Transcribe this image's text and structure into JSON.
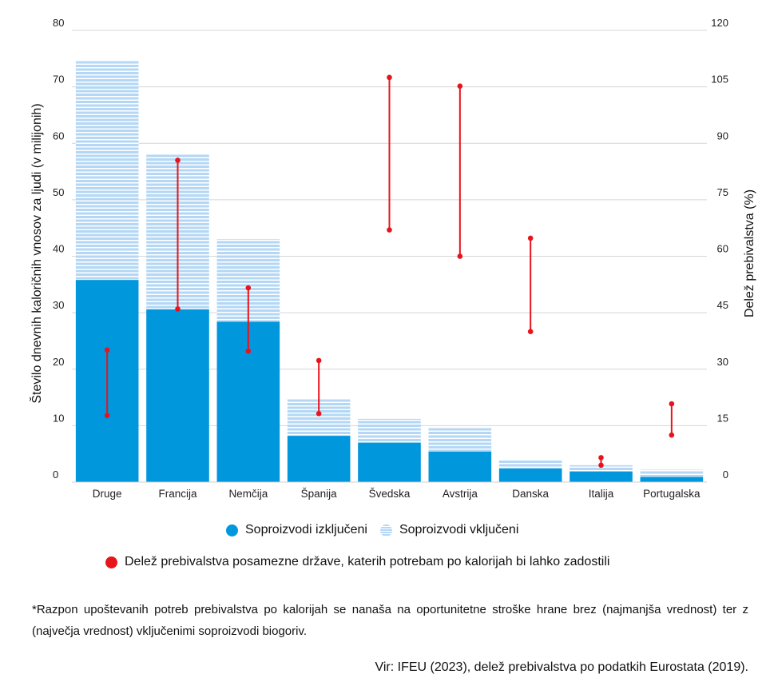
{
  "chart_data": {
    "type": "bar",
    "stacked": true,
    "categories": [
      "Druge",
      "Francija",
      "Nemčija",
      "Španija",
      "Švedska",
      "Avstrija",
      "Danska",
      "Italija",
      "Portugalska"
    ],
    "series": [
      {
        "name": "Soproizvodi izključeni",
        "color": "#0097dd",
        "pattern": "solid",
        "values": [
          35.8,
          30.6,
          28.4,
          8.2,
          7.0,
          5.4,
          2.4,
          1.9,
          0.9
        ]
      },
      {
        "name": "Soproizvodi vključeni",
        "color": "#b3d7f5",
        "pattern": "striped",
        "values": [
          38.8,
          27.6,
          14.6,
          6.5,
          4.2,
          4.2,
          1.6,
          1.1,
          1.3
        ]
      }
    ],
    "range_series": {
      "name": "Delež prebivalstva posamezne države, katerih potrebam po kalorijah bi lahko zadostili",
      "color": "#e8141c",
      "axis": "right",
      "min": [
        17.7,
        46.0,
        34.8,
        18.2,
        67.0,
        60.0,
        40.0,
        4.5,
        12.5
      ],
      "max": [
        35.1,
        85.5,
        51.6,
        32.3,
        107.5,
        105.2,
        64.8,
        6.5,
        20.8
      ]
    },
    "y_left": {
      "label": "Število dnevnih kaloričnih vnosov za ljudi (v milijonih)",
      "min": 0,
      "max": 80,
      "ticks": [
        0,
        10,
        20,
        30,
        40,
        50,
        60,
        70,
        80
      ]
    },
    "y_right": {
      "label": "Delež prebivalstva (%)",
      "min": 0,
      "max": 120,
      "ticks": [
        0,
        15,
        30,
        45,
        60,
        75,
        90,
        105,
        120
      ]
    },
    "grid": true
  },
  "legend": {
    "excluded": "Soproizvodi izključeni",
    "included": "Soproizvodi vključeni",
    "share": "Delež prebivalstva posamezne države, katerih potrebam po kalorijah bi lahko zadostili"
  },
  "footnote": "*Razpon upoštevanih potreb prebivalstva po kalorijah se nanaša na oportunitetne stroške hrane brez (najmanjša vrednost) ter z (največja vrednost) vključenimi soproizvodi biogoriv.",
  "source": "Vir: IFEU (2023), delež prebivalstva po podatkih Eurostata (2019)."
}
